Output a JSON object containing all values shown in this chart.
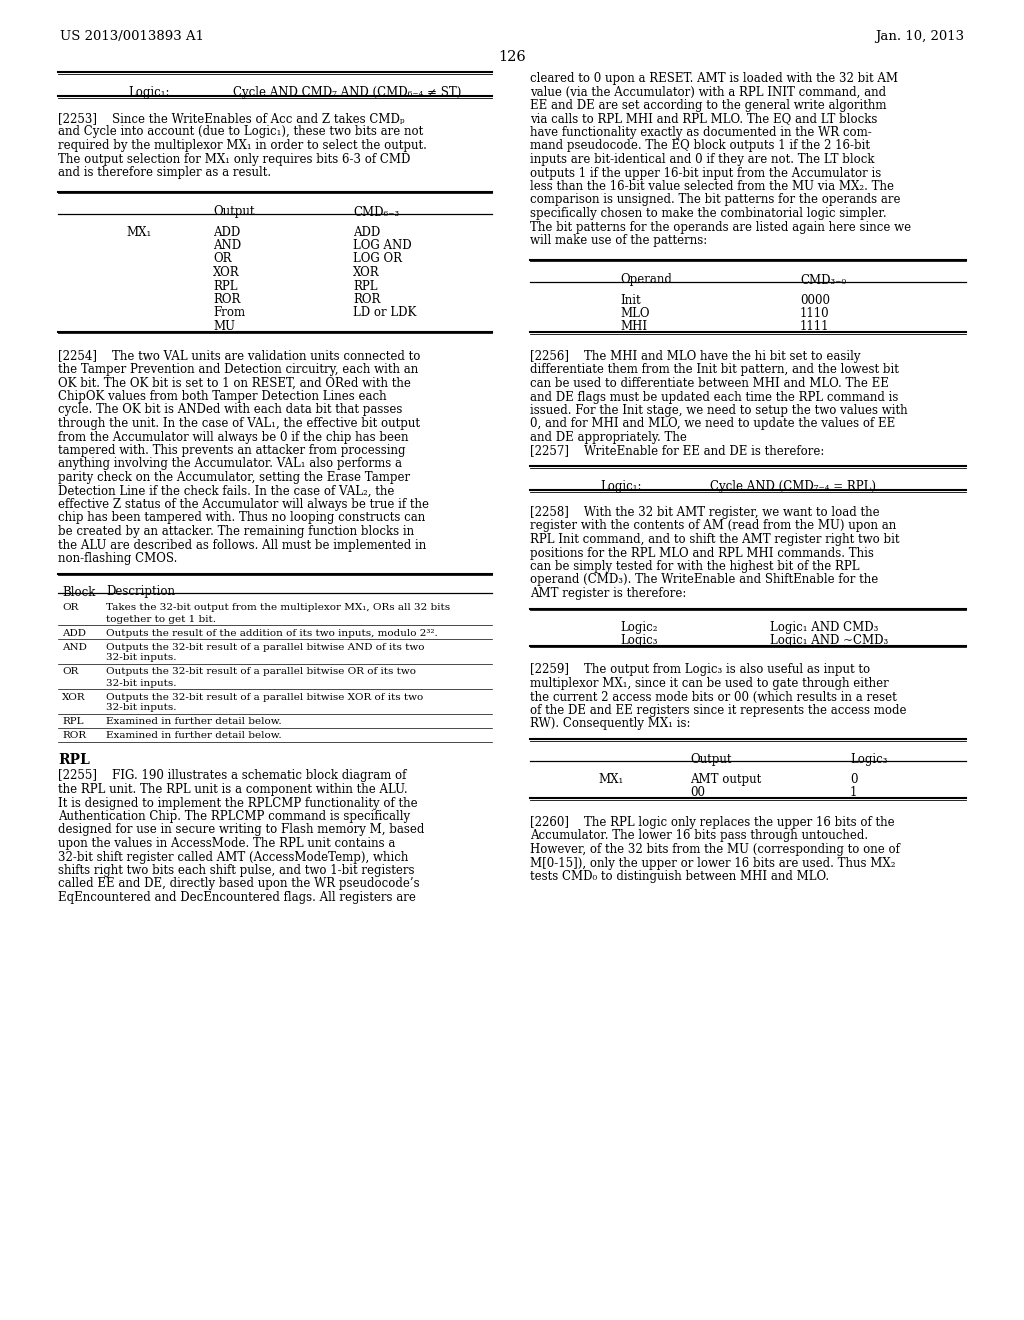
{
  "header_left": "US 2013/0013893 A1",
  "header_right": "Jan. 10, 2013",
  "page_number": "126",
  "background_color": "#ffffff",
  "left_table1": {
    "label": "Logic₁:",
    "formula": "Cycle AND CMD₇ AND (CMD₆₋₄ ≠ ST)"
  },
  "para2253_lines": [
    "[2253]    Since the WriteEnables of Acc and Z takes CMDₚ",
    "and Cycle into account (due to Logic₁), these two bits are not",
    "required by the multiplexor MX₁ in order to select the output.",
    "The output selection for MX₁ only requires bits 6-3 of CMD",
    "and is therefore simpler as a result."
  ],
  "table2_col1": "MX₁",
  "table2_output": [
    "ADD",
    "AND",
    "OR",
    "XOR",
    "RPL",
    "ROR",
    "From",
    "MU"
  ],
  "table2_cmd": [
    "ADD",
    "LOG AND",
    "LOG OR",
    "XOR",
    "RPL",
    "ROR",
    "LD or LDK",
    ""
  ],
  "table2_hdr_out": "Output",
  "table2_hdr_cmd": "CMD₆₋₃",
  "para2254_lines": [
    "[2254]    The two VAL units are validation units connected to",
    "the Tamper Prevention and Detection circuitry, each with an",
    "OK bit. The OK bit is set to 1 on RESET, and ORed with the",
    "ChipOK values from both Tamper Detection Lines each",
    "cycle. The OK bit is ANDed with each data bit that passes",
    "through the unit. In the case of VAL₁, the effective bit output",
    "from the Accumulator will always be 0 if the chip has been",
    "tampered with. This prevents an attacker from processing",
    "anything involving the Accumulator. VAL₁ also performs a",
    "parity check on the Accumulator, setting the Erase Tamper",
    "Detection Line if the check fails. In the case of VAL₂, the",
    "effective Z status of the Accumulator will always be true if the",
    "chip has been tampered with. Thus no looping constructs can",
    "be created by an attacker. The remaining function blocks in",
    "the ALU are described as follows. All must be implemented in",
    "non-flashing CMOS."
  ],
  "table3_rows": [
    [
      "OR",
      "Takes the 32-bit output from the multiplexor MX₁, ORs all 32 bits",
      "together to get 1 bit."
    ],
    [
      "ADD",
      "Outputs the result of the addition of its two inputs, modulo 2³².",
      ""
    ],
    [
      "AND",
      "Outputs the 32-bit result of a parallel bitwise AND of its two",
      "32-bit inputs."
    ],
    [
      "OR",
      "Outputs the 32-bit result of a parallel bitwise OR of its two",
      "32-bit inputs."
    ],
    [
      "XOR",
      "Outputs the 32-bit result of a parallel bitwise XOR of its two",
      "32-bit inputs."
    ],
    [
      "RPL",
      "Examined in further detail below.",
      ""
    ],
    [
      "ROR",
      "Examined in further detail below.",
      ""
    ]
  ],
  "rpl_heading": "RPL",
  "para2255_lines": [
    "[2255]    FIG. 190 illustrates a schematic block diagram of",
    "the RPL unit. The RPL unit is a component within the ALU.",
    "It is designed to implement the RPLCMP functionality of the",
    "Authentication Chip. The RPLCMP command is specifically",
    "designed for use in secure writing to Flash memory M, based",
    "upon the values in AccessMode. The RPL unit contains a",
    "32-bit shift register called AMT (AccessModeTemp), which",
    "shifts right two bits each shift pulse, and two 1-bit registers",
    "called EE and DE, directly based upon the WR pseudocode’s",
    "EqEncountered and DecEncountered flags. All registers are"
  ],
  "right_cont_lines": [
    "cleared to 0 upon a RESET. AMT is loaded with the 32 bit AM",
    "value (via the Accumulator) with a RPL INIT command, and",
    "EE and DE are set according to the general write algorithm",
    "via calls to RPL MHI and RPL MLO. The EQ and LT blocks",
    "have functionality exactly as documented in the WR com-",
    "mand pseudocode. The EQ block outputs 1 if the 2 16-bit",
    "inputs are bit-identical and 0 if they are not. The LT block",
    "outputs 1 if the upper 16-bit input from the Accumulator is",
    "less than the 16-bit value selected from the MU via MX₂. The",
    "comparison is unsigned. The bit patterns for the operands are",
    "specifically chosen to make the combinatorial logic simpler.",
    "The bit patterns for the operands are listed again here since we",
    "will make use of the patterns:"
  ],
  "table4_hdr_op": "Operand",
  "table4_hdr_cmd": "CMD₃₋₀",
  "table4_rows": [
    [
      "Init",
      "0000"
    ],
    [
      "MLO",
      "1110"
    ],
    [
      "MHI",
      "1111"
    ]
  ],
  "para2256_lines": [
    "[2256]    The MHI and MLO have the hi bit set to easily",
    "differentiate them from the Init bit pattern, and the lowest bit",
    "can be used to differentiate between MHI and MLO. The EE",
    "and DE flags must be updated each time the RPL command is",
    "issued. For the Init stage, we need to setup the two values with",
    "0, and for MHI and MLO, we need to update the values of EE",
    "and DE appropriately. The"
  ],
  "para2257_line": "[2257]    WriteEnable for EE and DE is therefore:",
  "table5_label": "Logic₁:",
  "table5_formula": "Cycle AND (CMD₇₋₄ = RPL)",
  "para2258_lines": [
    "[2258]    With the 32 bit AMT register, we want to load the",
    "register with the contents of AM (read from the MU) upon an",
    "RPL Init command, and to shift the AMT register right two bit",
    "positions for the RPL MLO and RPL MHI commands. This",
    "can be simply tested for with the highest bit of the RPL",
    "operand (CMD₃). The WriteEnable and ShiftEnable for the",
    "AMT register is therefore:"
  ],
  "table6_rows": [
    [
      "Logic₂",
      "Logic₁ AND CMD₃"
    ],
    [
      "Logic₃",
      "Logic₁ AND ~CMD₃"
    ]
  ],
  "para2259_lines": [
    "[2259]    The output from Logic₃ is also useful as input to",
    "multiplexor MX₁, since it can be used to gate through either",
    "the current 2 access mode bits or 00 (which results in a reset",
    "of the DE and EE registers since it represents the access mode",
    "RW). Consequently MX₁ is:"
  ],
  "table7_hdr_out": "Output",
  "table7_hdr_log": "Logic₃",
  "table7_col1": "MX₁",
  "table7_rows": [
    [
      "AMT output",
      "0"
    ],
    [
      "00",
      "1"
    ]
  ],
  "para2260_lines": [
    "[2260]    The RPL logic only replaces the upper 16 bits of the",
    "Accumulator. The lower 16 bits pass through untouched.",
    "However, of the 32 bits from the MU (corresponding to one of",
    "M[0-15]), only the upper or lower 16 bits are used. Thus MX₂",
    "tests CMD₀ to distinguish between MHI and MLO."
  ]
}
